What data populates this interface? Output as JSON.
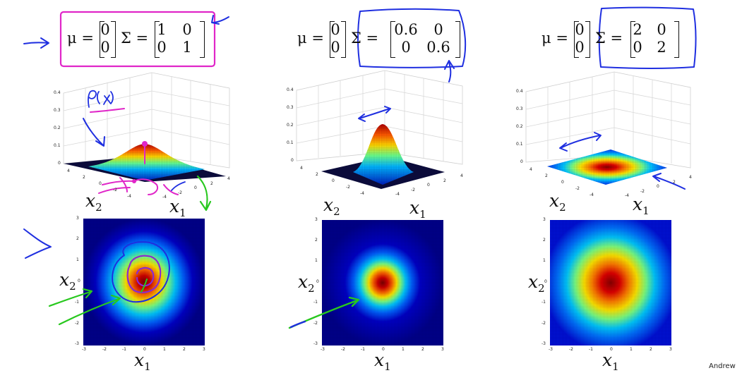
{
  "panels": [
    {
      "mu_label": "μ =",
      "mu": [
        "0",
        "0"
      ],
      "sigma_label": "Σ =",
      "sigma": [
        [
          "1",
          "0"
        ],
        [
          "0",
          "1"
        ]
      ],
      "variance": 1.0,
      "surface_zticks": [
        "0.4",
        "0.3",
        "0.2",
        "0.1",
        "0"
      ],
      "x1_label": "x",
      "x2_label": "x",
      "x1_sub": "1",
      "x2_sub": "2",
      "x_ticks": [
        "-4",
        "-2",
        "0",
        "2",
        "4"
      ],
      "contour_ticks": [
        "-3",
        "-2",
        "-1",
        "0",
        "1",
        "2",
        "3"
      ]
    },
    {
      "mu_label": "μ =",
      "mu": [
        "0",
        "0"
      ],
      "sigma_label": "Σ =",
      "sigma": [
        [
          "0.6",
          "0"
        ],
        [
          "0",
          "0.6"
        ]
      ],
      "variance": 0.6,
      "surface_zticks": [
        "0.4",
        "0.3",
        "0.2",
        "0.1",
        "0"
      ],
      "x1_label": "x",
      "x2_label": "x",
      "x1_sub": "1",
      "x2_sub": "2",
      "x_ticks": [
        "-4",
        "-2",
        "0",
        "2",
        "4"
      ],
      "contour_ticks": [
        "-3",
        "-2",
        "-1",
        "0",
        "1",
        "2",
        "3"
      ]
    },
    {
      "mu_label": "μ =",
      "mu": [
        "0",
        "0"
      ],
      "sigma_label": "Σ =",
      "sigma": [
        [
          "2",
          "0"
        ],
        [
          "0",
          "2"
        ]
      ],
      "variance": 2.0,
      "surface_zticks": [
        "0.4",
        "0.3",
        "0.2",
        "0.1",
        "0"
      ],
      "x1_label": "x",
      "x2_label": "x",
      "x1_sub": "1",
      "x2_sub": "2",
      "x_ticks": [
        "-4",
        "-2",
        "0",
        "2",
        "4"
      ],
      "contour_ticks": [
        "-3",
        "-2",
        "-1",
        "0",
        "1",
        "2",
        "3"
      ]
    }
  ],
  "annotation": {
    "handwritten_label": "P(x)"
  },
  "credit": "Andrew",
  "colors": {
    "highlight_box": "#e026c8",
    "ink_blue": "#1f2fe0",
    "ink_green": "#28c81e",
    "ink_purple": "#8a2ad0"
  }
}
